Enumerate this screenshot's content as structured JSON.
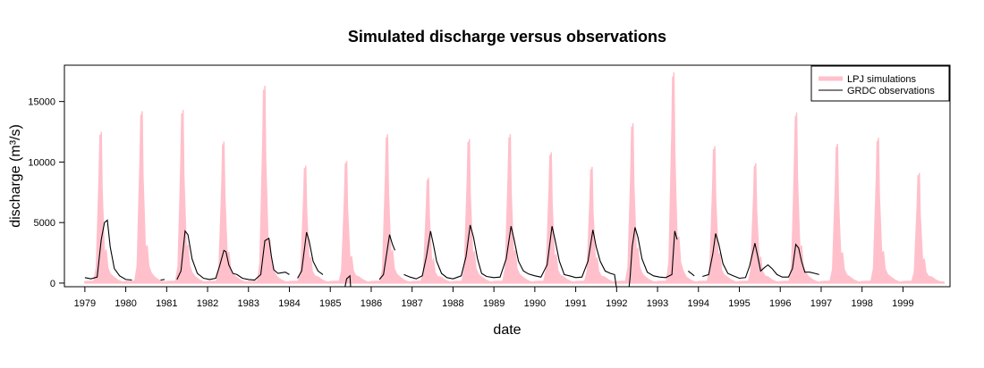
{
  "chart_data": {
    "type": "line",
    "title": "Simulated discharge versus observations",
    "xlabel": "date",
    "ylabel": "discharge (m³/s)",
    "ylim": [
      -300,
      18000
    ],
    "xlim": [
      1978.5,
      2000.15
    ],
    "x_ticks": [
      1979,
      1980,
      1981,
      1982,
      1983,
      1984,
      1985,
      1986,
      1987,
      1988,
      1989,
      1990,
      1991,
      1992,
      1993,
      1994,
      1995,
      1996,
      1997,
      1998,
      1999
    ],
    "x_tick_labels": [
      "1979",
      "1980",
      "1981",
      "1982",
      "1983",
      "1984",
      "1985",
      "1986",
      "1987",
      "1988",
      "1989",
      "1990",
      "1991",
      "1992",
      "1993",
      "1994",
      "1995",
      "1996",
      "1997",
      "1998",
      "1999"
    ],
    "y_ticks": [
      0,
      5000,
      10000,
      15000
    ],
    "y_tick_labels": [
      "0",
      "5000",
      "10000",
      "15000"
    ],
    "grid": false,
    "legend_position": "top-right",
    "series": [
      {
        "name": "LPJ simulations",
        "color": "#ffc0cb",
        "style": "band",
        "annual_peaks": [
          {
            "year": 1979,
            "peak": 12500
          },
          {
            "year": 1980,
            "peak": 14200
          },
          {
            "year": 1981,
            "peak": 14300
          },
          {
            "year": 1982,
            "peak": 11700
          },
          {
            "year": 1983,
            "peak": 16300
          },
          {
            "year": 1984,
            "peak": 9700
          },
          {
            "year": 1985,
            "peak": 10100
          },
          {
            "year": 1986,
            "peak": 12300
          },
          {
            "year": 1987,
            "peak": 8700
          },
          {
            "year": 1988,
            "peak": 11900
          },
          {
            "year": 1989,
            "peak": 12300
          },
          {
            "year": 1990,
            "peak": 10800
          },
          {
            "year": 1991,
            "peak": 9600
          },
          {
            "year": 1992,
            "peak": 13200
          },
          {
            "year": 1993,
            "peak": 17400
          },
          {
            "year": 1994,
            "peak": 11300
          },
          {
            "year": 1995,
            "peak": 9900
          },
          {
            "year": 1996,
            "peak": 14100
          },
          {
            "year": 1997,
            "peak": 11500
          },
          {
            "year": 1998,
            "peak": 12000
          },
          {
            "year": 1999,
            "peak": 9100
          }
        ]
      },
      {
        "name": "GRDC observations",
        "color": "#000000",
        "style": "line",
        "segments": [
          [
            [
              1979.0,
              450
            ],
            [
              1979.15,
              350
            ],
            [
              1979.3,
              500
            ],
            [
              1979.4,
              3600
            ],
            [
              1979.48,
              5000
            ],
            [
              1979.55,
              5200
            ],
            [
              1979.62,
              3000
            ],
            [
              1979.72,
              1200
            ],
            [
              1979.85,
              600
            ],
            [
              1980.0,
              300
            ],
            [
              1980.15,
              250
            ]
          ],
          [
            [
              1980.85,
              250
            ],
            [
              1980.95,
              300
            ]
          ],
          [
            [
              1981.25,
              300
            ],
            [
              1981.35,
              1000
            ],
            [
              1981.45,
              4300
            ],
            [
              1981.52,
              4000
            ],
            [
              1981.62,
              2000
            ],
            [
              1981.75,
              800
            ],
            [
              1981.9,
              400
            ],
            [
              1982.05,
              300
            ],
            [
              1982.2,
              400
            ],
            [
              1982.3,
              1500
            ],
            [
              1982.4,
              2700
            ],
            [
              1982.45,
              2600
            ],
            [
              1982.52,
              1500
            ],
            [
              1982.62,
              800
            ],
            [
              1982.72,
              700
            ],
            [
              1982.85,
              400
            ],
            [
              1983.0,
              300
            ],
            [
              1983.15,
              250
            ],
            [
              1983.3,
              700
            ],
            [
              1983.4,
              3500
            ],
            [
              1983.5,
              3700
            ],
            [
              1983.56,
              2200
            ],
            [
              1983.62,
              1100
            ],
            [
              1983.72,
              800
            ],
            [
              1983.9,
              900
            ],
            [
              1984.0,
              700
            ]
          ],
          [
            [
              1984.2,
              400
            ],
            [
              1984.3,
              1000
            ],
            [
              1984.42,
              4200
            ],
            [
              1984.48,
              3500
            ],
            [
              1984.58,
              1800
            ],
            [
              1984.7,
              1000
            ],
            [
              1984.82,
              700
            ]
          ],
          [
            [
              1985.35,
              -500
            ],
            [
              1985.4,
              350
            ],
            [
              1985.48,
              600
            ],
            [
              1985.5,
              -500
            ]
          ],
          [
            [
              1986.2,
              300
            ],
            [
              1986.3,
              700
            ],
            [
              1986.45,
              4000
            ],
            [
              1986.52,
              3200
            ],
            [
              1986.58,
              2700
            ]
          ],
          [
            [
              1986.8,
              700
            ],
            [
              1986.95,
              500
            ],
            [
              1987.1,
              350
            ],
            [
              1987.25,
              600
            ],
            [
              1987.35,
              2200
            ],
            [
              1987.45,
              4300
            ],
            [
              1987.52,
              3200
            ],
            [
              1987.6,
              1800
            ],
            [
              1987.72,
              800
            ],
            [
              1987.85,
              450
            ],
            [
              1988.0,
              350
            ],
            [
              1988.2,
              600
            ],
            [
              1988.32,
              2200
            ],
            [
              1988.42,
              4800
            ],
            [
              1988.5,
              3800
            ],
            [
              1988.6,
              2000
            ],
            [
              1988.7,
              800
            ],
            [
              1988.82,
              550
            ],
            [
              1989.0,
              450
            ],
            [
              1989.15,
              500
            ],
            [
              1989.3,
              2000
            ],
            [
              1989.42,
              4700
            ],
            [
              1989.5,
              3500
            ],
            [
              1989.6,
              1800
            ],
            [
              1989.72,
              1000
            ],
            [
              1989.85,
              750
            ],
            [
              1990.0,
              600
            ],
            [
              1990.15,
              500
            ],
            [
              1990.3,
              1500
            ],
            [
              1990.42,
              4700
            ],
            [
              1990.5,
              3500
            ],
            [
              1990.6,
              1800
            ],
            [
              1990.72,
              700
            ],
            [
              1990.85,
              600
            ],
            [
              1991.0,
              450
            ],
            [
              1991.15,
              500
            ],
            [
              1991.3,
              1800
            ],
            [
              1991.42,
              4400
            ],
            [
              1991.5,
              3000
            ],
            [
              1991.6,
              1800
            ],
            [
              1991.72,
              1000
            ],
            [
              1991.85,
              800
            ],
            [
              1991.95,
              700
            ],
            [
              1992.0,
              -500
            ]
          ],
          [
            [
              1992.3,
              -500
            ],
            [
              1992.33,
              500
            ],
            [
              1992.38,
              3000
            ],
            [
              1992.45,
              4600
            ],
            [
              1992.52,
              3800
            ],
            [
              1992.62,
              2000
            ],
            [
              1992.75,
              900
            ],
            [
              1992.9,
              600
            ],
            [
              1993.05,
              500
            ],
            [
              1993.2,
              450
            ],
            [
              1993.35,
              700
            ],
            [
              1993.42,
              4300
            ],
            [
              1993.48,
              3600
            ]
          ],
          [
            [
              1993.75,
              1000
            ],
            [
              1993.9,
              600
            ]
          ],
          [
            [
              1994.1,
              550
            ],
            [
              1994.25,
              700
            ],
            [
              1994.35,
              2400
            ],
            [
              1994.42,
              4100
            ],
            [
              1994.5,
              3200
            ],
            [
              1994.6,
              1600
            ],
            [
              1994.72,
              800
            ],
            [
              1994.85,
              600
            ],
            [
              1995.0,
              400
            ],
            [
              1995.15,
              450
            ],
            [
              1995.25,
              1400
            ],
            [
              1995.38,
              3300
            ],
            [
              1995.45,
              2200
            ],
            [
              1995.52,
              1000
            ],
            [
              1995.62,
              1300
            ],
            [
              1995.7,
              1500
            ],
            [
              1995.8,
              1200
            ],
            [
              1995.92,
              700
            ],
            [
              1996.05,
              500
            ],
            [
              1996.2,
              500
            ],
            [
              1996.3,
              1200
            ],
            [
              1996.38,
              3200
            ],
            [
              1996.45,
              2900
            ],
            [
              1996.52,
              1800
            ],
            [
              1996.6,
              900
            ],
            [
              1996.72,
              900
            ],
            [
              1996.85,
              800
            ],
            [
              1996.95,
              700
            ]
          ]
        ]
      }
    ]
  }
}
